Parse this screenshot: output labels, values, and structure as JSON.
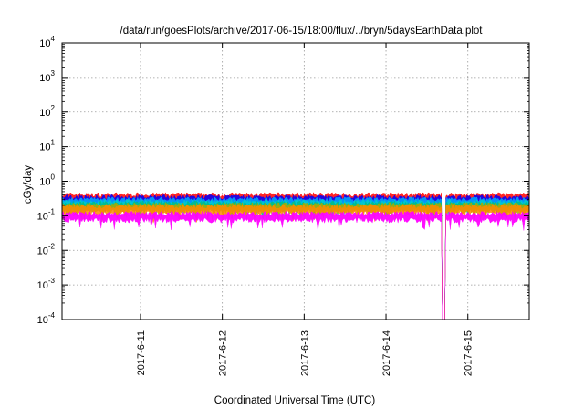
{
  "chart_data": {
    "type": "area",
    "title": "/data/run/goesPlots/archive/2017-06-15/18:00/flux/../bryn/5daysEarthData.plot",
    "xlabel": "Coordinated Universal Time (UTC)",
    "ylabel": "cGy/day",
    "x_range": [
      "2017-06-10T01:00",
      "2017-06-15T18:00"
    ],
    "x_ticks": [
      "2017-6-11",
      "2017-6-12",
      "2017-6-13",
      "2017-6-14",
      "2017-6-15"
    ],
    "y_scale": "log",
    "y_range": [
      0.0001,
      10000
    ],
    "y_ticks": [
      {
        "base": "10",
        "exp": "-4"
      },
      {
        "base": "10",
        "exp": "-3"
      },
      {
        "base": "10",
        "exp": "-2"
      },
      {
        "base": "10",
        "exp": "-1"
      },
      {
        "base": "10",
        "exp": "0"
      },
      {
        "base": "10",
        "exp": "1"
      },
      {
        "base": "10",
        "exp": "2"
      },
      {
        "base": "10",
        "exp": "3"
      },
      {
        "base": "10",
        "exp": "4"
      }
    ],
    "grid": true,
    "legend": false,
    "series_colors": [
      "#ff0000",
      "#0000ff",
      "#00aaff",
      "#00cccc",
      "#00bb88",
      "#aaaa00",
      "#ff8800",
      "#ff00ff"
    ],
    "series_typical_values": [
      0.35,
      0.3,
      0.26,
      0.22,
      0.2,
      0.18,
      0.16,
      0.1
    ],
    "gap": {
      "start": "2017-06-14T16:30",
      "end": "2017-06-14T17:30",
      "series": "magenta",
      "value": 0.0001
    }
  }
}
